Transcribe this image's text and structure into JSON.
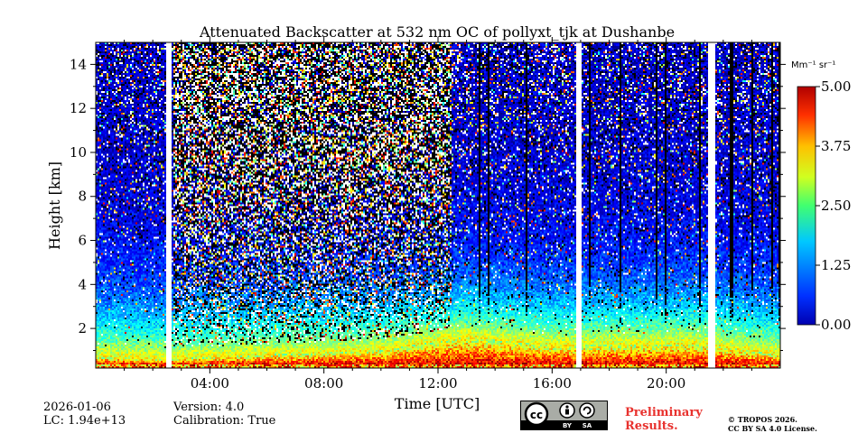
{
  "chart_data": {
    "type": "heatmap",
    "title": "Attenuated Backscatter at 532 nm OC of pollyxt_tjk at Dushanbe",
    "xlabel": "Time [UTC]",
    "ylabel": "Height [km]",
    "x_ticks": [
      "04:00",
      "08:00",
      "12:00",
      "16:00",
      "20:00"
    ],
    "x_tick_hours": [
      4,
      8,
      12,
      16,
      20
    ],
    "xlim_hours": [
      0,
      24
    ],
    "y_ticks": [
      "2",
      "4",
      "6",
      "8",
      "10",
      "12",
      "14"
    ],
    "y_tick_values": [
      2,
      4,
      6,
      8,
      10,
      12,
      14
    ],
    "ylim_km": [
      0.2,
      15
    ],
    "colorbar": {
      "unit": "Mm⁻¹ sr⁻¹",
      "ticks": [
        "0.00",
        "1.25",
        "2.50",
        "3.75",
        "5.00"
      ],
      "tick_values": [
        0,
        1.25,
        2.5,
        3.75,
        5
      ],
      "range": [
        0,
        5
      ],
      "colormap": "jet"
    },
    "data_gaps_hours": [
      2.55,
      16.95,
      21.6
    ],
    "boundary_layer_top_km": [
      {
        "hour": 0,
        "km": 0.7
      },
      {
        "hour": 2.5,
        "km": 0.6
      },
      {
        "hour": 6,
        "km": 0.8
      },
      {
        "hour": 10,
        "km": 1.0
      },
      {
        "hour": 12,
        "km": 1.4
      },
      {
        "hour": 13,
        "km": 1.6
      },
      {
        "hour": 16,
        "km": 1.2
      },
      {
        "hour": 21,
        "km": 1.3
      },
      {
        "hour": 24,
        "km": 0.8
      }
    ],
    "noisy_interval_hours": [
      2.7,
      12.5
    ]
  },
  "footer": {
    "date": "2026-01-06",
    "lc": "LC: 1.94e+13",
    "version": "Version: 4.0",
    "calibration": "Calibration: True",
    "preliminary_line1": "Preliminary",
    "preliminary_line2": "Results.",
    "license_line1": "© TROPOS 2026.",
    "license_line2": "CC BY SA 4.0 License."
  },
  "logo": {
    "by": "BY",
    "sa": "SA"
  },
  "colors": {
    "background": "#ffffff",
    "preliminary": "#e8322e",
    "logo_bg": "#a9aca6"
  }
}
